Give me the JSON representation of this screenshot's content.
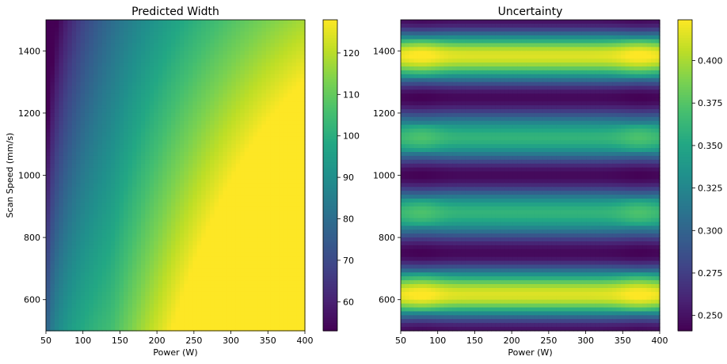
{
  "chart_data": [
    {
      "type": "heatmap",
      "title": "Predicted Width",
      "xlabel": "Power (W)",
      "ylabel": "Scan Speed (mm/s)",
      "xlim": [
        50,
        400
      ],
      "ylim": [
        500,
        1500
      ],
      "xticks": [
        50,
        100,
        150,
        200,
        250,
        300,
        350,
        400
      ],
      "yticks": [
        600,
        800,
        1000,
        1200,
        1400
      ],
      "colormap": "viridis",
      "colorbar": {
        "min": 53,
        "max": 128,
        "ticks": [
          60,
          70,
          80,
          90,
          100,
          110,
          120
        ]
      },
      "grid": false,
      "samples": [
        {
          "power": 50,
          "speed": 1500,
          "value": 55
        },
        {
          "power": 50,
          "speed": 500,
          "value": 78
        },
        {
          "power": 200,
          "speed": 1000,
          "value": 100
        },
        {
          "power": 400,
          "speed": 1500,
          "value": 112
        },
        {
          "power": 350,
          "speed": 530,
          "value": 127
        },
        {
          "power": 400,
          "speed": 500,
          "value": 123
        }
      ]
    },
    {
      "type": "heatmap",
      "title": "Uncertainty",
      "xlabel": "Power (W)",
      "ylabel": "",
      "xlim": [
        50,
        400
      ],
      "ylim": [
        500,
        1500
      ],
      "xticks": [
        50,
        100,
        150,
        200,
        250,
        300,
        350,
        400
      ],
      "yticks": [
        600,
        800,
        1000,
        1200,
        1400
      ],
      "colormap": "viridis",
      "colorbar": {
        "min": 0.241,
        "max": 0.424,
        "ticks": [
          0.25,
          0.275,
          0.3,
          0.325,
          0.35,
          0.375,
          0.4
        ]
      },
      "grid": false,
      "band_profile_by_speed": [
        {
          "speed": 500,
          "value": 0.25
        },
        {
          "speed": 615,
          "value": 0.415
        },
        {
          "speed": 750,
          "value": 0.245
        },
        {
          "speed": 880,
          "value": 0.36
        },
        {
          "speed": 1000,
          "value": 0.245
        },
        {
          "speed": 1120,
          "value": 0.36
        },
        {
          "speed": 1250,
          "value": 0.245
        },
        {
          "speed": 1385,
          "value": 0.415
        },
        {
          "speed": 1500,
          "value": 0.25
        }
      ]
    }
  ]
}
